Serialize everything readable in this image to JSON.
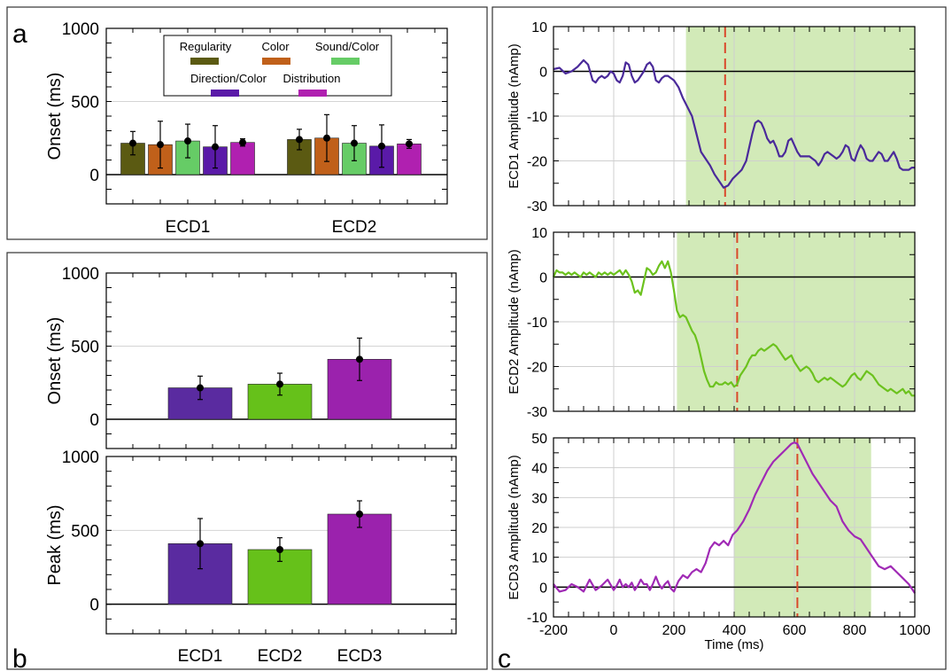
{
  "panels": {
    "a": {
      "letter": "a"
    },
    "b": {
      "letter": "b"
    },
    "c": {
      "letter": "c"
    }
  },
  "chart_data": [
    {
      "panel": "a",
      "type": "bar",
      "categories": [
        "ECD1",
        "ECD2"
      ],
      "ylabel": "Onset (ms)",
      "ylim": [
        -200,
        1000
      ],
      "yticks": [
        0,
        500,
        1000
      ],
      "grid": "y",
      "legend_position": "top",
      "series": [
        {
          "name": "Regularity",
          "color": "#5b5a12",
          "values": [
            215,
            240
          ],
          "errors": [
            80,
            70
          ]
        },
        {
          "name": "Color",
          "color": "#c0601a",
          "values": [
            205,
            250
          ],
          "errors": [
            160,
            160
          ]
        },
        {
          "name": "Sound/Color",
          "color": "#66cc66",
          "values": [
            230,
            215
          ],
          "errors": [
            115,
            120
          ]
        },
        {
          "name": "Direction/Color",
          "color": "#5a1aa8",
          "values": [
            190,
            195
          ],
          "errors": [
            145,
            145
          ]
        },
        {
          "name": "Distribution",
          "color": "#b020b0",
          "values": [
            220,
            210
          ],
          "errors": [
            25,
            30
          ]
        }
      ]
    },
    {
      "panel": "b-top",
      "type": "bar",
      "categories": [
        "ECD1",
        "ECD2",
        "ECD3"
      ],
      "ylabel": "Onset (ms)",
      "ylim": [
        -200,
        1000
      ],
      "yticks": [
        0,
        500,
        1000
      ],
      "grid": "y",
      "colors": [
        "#5a2ba0",
        "#66c11a",
        "#9b22ad"
      ],
      "values": [
        215,
        240,
        410
      ],
      "errors": [
        80,
        75,
        145
      ]
    },
    {
      "panel": "b-bottom",
      "type": "bar",
      "categories": [
        "ECD1",
        "ECD2",
        "ECD3"
      ],
      "ylabel": "Peak (ms)",
      "ylim": [
        -200,
        1000
      ],
      "yticks": [
        0,
        500,
        1000
      ],
      "grid": "y",
      "colors": [
        "#5a2ba0",
        "#66c11a",
        "#9b22ad"
      ],
      "values": [
        410,
        370,
        610
      ],
      "errors": [
        170,
        80,
        90
      ]
    },
    {
      "panel": "c1",
      "type": "line",
      "ylabel": "ECD1 Amplitude (nAmp)",
      "xlim": [
        -200,
        1000
      ],
      "ylim": [
        -30,
        10
      ],
      "yticks": [
        -30,
        -20,
        -10,
        0,
        10
      ],
      "xticks": [
        -200,
        0,
        200,
        400,
        600,
        800,
        1000
      ],
      "grid": "both",
      "color": "#4a2a9a",
      "shaded_range": [
        240,
        1000
      ],
      "marker_x": 370,
      "x": [
        -200,
        -180,
        -160,
        -140,
        -120,
        -100,
        -85,
        -70,
        -60,
        -50,
        -40,
        -30,
        -20,
        -10,
        0,
        10,
        20,
        30,
        40,
        50,
        60,
        70,
        80,
        90,
        100,
        110,
        120,
        130,
        140,
        150,
        160,
        170,
        180,
        190,
        200,
        215,
        230,
        245,
        260,
        275,
        290,
        305,
        320,
        335,
        350,
        365,
        380,
        395,
        410,
        425,
        440,
        450,
        460,
        470,
        480,
        490,
        500,
        510,
        520,
        530,
        540,
        550,
        560,
        570,
        580,
        590,
        600,
        610,
        620,
        630,
        640,
        650,
        660,
        670,
        680,
        690,
        700,
        710,
        720,
        730,
        740,
        750,
        760,
        770,
        780,
        790,
        800,
        810,
        820,
        830,
        840,
        850,
        860,
        870,
        880,
        890,
        900,
        910,
        920,
        930,
        940,
        950,
        960,
        970,
        980,
        990,
        1000
      ],
      "y": [
        0.5,
        0.8,
        -0.5,
        0.0,
        1.0,
        2.5,
        1.5,
        -2.0,
        -2.5,
        -1.5,
        -1.0,
        -1.5,
        -1.0,
        0.0,
        -0.5,
        -2.0,
        -2.5,
        -1.0,
        2.0,
        1.5,
        -1.0,
        -2.5,
        -2.0,
        -1.0,
        0.0,
        1.5,
        2.0,
        1.0,
        -2.0,
        -2.5,
        -1.5,
        -1.0,
        -1.0,
        -1.5,
        -2.0,
        -3.5,
        -6.0,
        -8.0,
        -10.0,
        -14.0,
        -18.0,
        -19.5,
        -21.0,
        -23.0,
        -24.5,
        -26.0,
        -25.5,
        -24.0,
        -23.0,
        -22.0,
        -20.0,
        -17.0,
        -14.0,
        -11.5,
        -11.0,
        -11.5,
        -13.0,
        -15.0,
        -16.0,
        -15.5,
        -17.0,
        -19.0,
        -19.0,
        -18.0,
        -15.5,
        -15.0,
        -16.5,
        -18.0,
        -19.0,
        -19.0,
        -19.0,
        -19.0,
        -19.5,
        -20.0,
        -21.0,
        -20.0,
        -18.5,
        -18.0,
        -18.5,
        -19.0,
        -19.5,
        -19.0,
        -18.0,
        -16.5,
        -17.0,
        -19.5,
        -20.0,
        -18.0,
        -16.5,
        -17.5,
        -19.5,
        -20.0,
        -20.0,
        -19.0,
        -18.0,
        -18.5,
        -20.0,
        -20.0,
        -19.0,
        -18.0,
        -19.5,
        -21.5,
        -22.0,
        -22.0,
        -22.0,
        -21.5,
        -21.5
      ]
    },
    {
      "panel": "c2",
      "type": "line",
      "ylabel": "ECD2 Amplitude (nAmp)",
      "xlim": [
        -200,
        1000
      ],
      "ylim": [
        -30,
        10
      ],
      "yticks": [
        -30,
        -20,
        -10,
        0,
        10
      ],
      "xticks": [
        -200,
        0,
        200,
        400,
        600,
        800,
        1000
      ],
      "grid": "both",
      "color": "#6cc21e",
      "shaded_range": [
        210,
        1000
      ],
      "marker_x": 410,
      "x": [
        -200,
        -190,
        -180,
        -170,
        -160,
        -150,
        -140,
        -130,
        -120,
        -110,
        -100,
        -90,
        -80,
        -70,
        -60,
        -50,
        -40,
        -30,
        -20,
        -10,
        0,
        10,
        20,
        30,
        40,
        50,
        60,
        70,
        80,
        90,
        100,
        110,
        120,
        130,
        140,
        150,
        160,
        170,
        180,
        190,
        200,
        210,
        220,
        230,
        240,
        250,
        260,
        270,
        280,
        290,
        300,
        310,
        320,
        330,
        340,
        350,
        360,
        370,
        380,
        390,
        400,
        410,
        420,
        430,
        440,
        450,
        460,
        470,
        480,
        490,
        500,
        510,
        520,
        530,
        540,
        550,
        560,
        570,
        580,
        590,
        600,
        610,
        620,
        630,
        640,
        650,
        660,
        670,
        680,
        690,
        700,
        710,
        720,
        730,
        740,
        750,
        760,
        770,
        780,
        790,
        800,
        810,
        820,
        830,
        840,
        850,
        860,
        870,
        880,
        890,
        900,
        910,
        920,
        930,
        940,
        950,
        960,
        970,
        980,
        990,
        1000
      ],
      "y": [
        0.0,
        1.5,
        1.0,
        1.0,
        0.5,
        1.0,
        0.5,
        1.0,
        0.5,
        0.0,
        1.0,
        0.5,
        1.0,
        0.5,
        0.0,
        1.0,
        0.5,
        1.0,
        0.5,
        1.0,
        0.5,
        1.0,
        1.5,
        0.5,
        1.5,
        0.5,
        -1.0,
        -3.5,
        -3.0,
        -4.0,
        -1.0,
        2.0,
        1.5,
        0.5,
        1.0,
        2.5,
        3.5,
        2.0,
        3.5,
        1.0,
        -3.0,
        -7.5,
        -9.0,
        -8.5,
        -9.0,
        -10.5,
        -12.0,
        -13.0,
        -15.0,
        -18.0,
        -21.0,
        -23.0,
        -24.5,
        -24.5,
        -23.5,
        -24.0,
        -24.0,
        -23.5,
        -24.0,
        -23.5,
        -24.5,
        -24.0,
        -22.0,
        -21.0,
        -20.0,
        -18.5,
        -17.5,
        -17.5,
        -16.5,
        -16.0,
        -16.5,
        -16.0,
        -15.5,
        -15.0,
        -15.5,
        -16.5,
        -17.5,
        -18.5,
        -18.0,
        -17.5,
        -19.0,
        -20.0,
        -21.0,
        -20.5,
        -20.0,
        -20.5,
        -21.5,
        -23.0,
        -23.5,
        -23.0,
        -22.5,
        -23.0,
        -22.5,
        -23.0,
        -23.5,
        -24.0,
        -24.5,
        -24.0,
        -23.0,
        -22.0,
        -21.5,
        -22.5,
        -23.0,
        -22.0,
        -21.0,
        -21.5,
        -22.0,
        -23.0,
        -24.0,
        -24.5,
        -25.0,
        -25.5,
        -25.0,
        -25.5,
        -26.0,
        -25.5,
        -25.0,
        -26.0,
        -25.5,
        -26.5,
        -26.5
      ]
    },
    {
      "panel": "c3",
      "type": "line",
      "ylabel": "ECD3 Amplitude (nAmp)",
      "xlabel": "Time (ms)",
      "xlim": [
        -200,
        1000
      ],
      "ylim": [
        -10,
        50
      ],
      "yticks": [
        -10,
        0,
        10,
        20,
        30,
        40,
        50
      ],
      "xticks": [
        -200,
        0,
        200,
        400,
        600,
        800,
        1000
      ],
      "grid": "both",
      "color": "#a02ab5",
      "shaded_range": [
        400,
        855
      ],
      "marker_x": 610,
      "x": [
        -200,
        -180,
        -160,
        -140,
        -120,
        -100,
        -80,
        -60,
        -40,
        -20,
        0,
        10,
        20,
        30,
        40,
        50,
        60,
        70,
        80,
        90,
        100,
        110,
        120,
        130,
        140,
        150,
        160,
        170,
        180,
        190,
        200,
        215,
        230,
        245,
        260,
        275,
        290,
        305,
        320,
        335,
        350,
        365,
        380,
        395,
        410,
        430,
        450,
        470,
        490,
        510,
        530,
        550,
        570,
        590,
        600,
        610,
        620,
        630,
        640,
        660,
        680,
        700,
        720,
        740,
        760,
        780,
        800,
        820,
        840,
        860,
        880,
        900,
        920,
        940,
        960,
        980,
        1000
      ],
      "y": [
        1.0,
        -1.5,
        -1.0,
        1.0,
        0.0,
        -1.5,
        2.5,
        -1.0,
        0.5,
        2.5,
        -1.0,
        0.5,
        2.5,
        0.0,
        1.0,
        0.0,
        1.5,
        -1.0,
        0.5,
        2.5,
        1.0,
        1.0,
        -1.0,
        1.0,
        3.5,
        1.0,
        -0.5,
        1.0,
        2.0,
        -0.5,
        -1.5,
        2.0,
        4.0,
        3.0,
        5.0,
        6.0,
        5.0,
        8.0,
        13.0,
        15.0,
        14.0,
        15.5,
        14.0,
        17.5,
        19.0,
        22.0,
        26.0,
        31.0,
        35.0,
        39.0,
        42.0,
        44.0,
        46.0,
        48.0,
        48.5,
        48.0,
        46.0,
        44.0,
        42.0,
        38.0,
        35.0,
        32.0,
        29.0,
        27.0,
        22.0,
        19.0,
        17.0,
        16.0,
        13.0,
        10.0,
        7.0,
        6.0,
        7.0,
        5.0,
        3.0,
        1.0,
        -2.0
      ]
    }
  ]
}
